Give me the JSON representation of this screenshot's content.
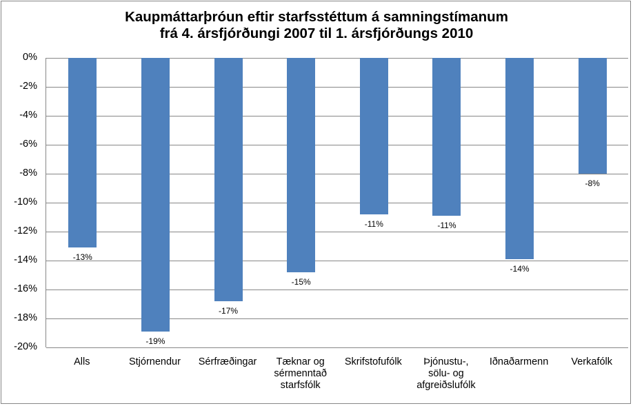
{
  "chart_data": {
    "type": "bar",
    "title": "Kaupmáttarþróun eftir starfsstéttum á samningstímanum frá 4. ársfjórðungi 2007 til 1. ársfjórðungs 2010",
    "title_lines": [
      "Kaupmáttarþróun eftir starfsstéttum á samningstímanum",
      "frá 4. ársfjórðungi 2007 til 1. ársfjórðungs 2010"
    ],
    "categories": [
      "Alls",
      "Stjórnendur",
      "Sérfræðingar",
      "Tæknar og sérmenntað starfsfólk",
      "Skrifstofufólk",
      "Þjónustu-, sölu- og afgreiðslufólk",
      "Iðnaðarmenn",
      "Verkafólk"
    ],
    "category_lines": [
      [
        "Alls"
      ],
      [
        "Stjórnendur"
      ],
      [
        "Sérfræðingar"
      ],
      [
        "Tæknar og",
        "sérmenntað",
        "starfsfólk"
      ],
      [
        "Skrifstofufólk"
      ],
      [
        "Þjónustu-,",
        "sölu- og",
        "afgreiðslufólk"
      ],
      [
        "Iðnaðarmenn"
      ],
      [
        "Verkafólk"
      ]
    ],
    "values": [
      -13.1,
      -18.9,
      -16.8,
      -14.8,
      -10.8,
      -10.9,
      -13.9,
      -8.0
    ],
    "data_labels": [
      "-13%",
      "-19%",
      "-17%",
      "-15%",
      "-11%",
      "-11%",
      "-14%",
      "-8%"
    ],
    "xlabel": "",
    "ylabel": "",
    "ylim": [
      -20,
      0
    ],
    "yticks": [
      "0%",
      "-2%",
      "-4%",
      "-6%",
      "-8%",
      "-10%",
      "-12%",
      "-14%",
      "-16%",
      "-18%",
      "-20%"
    ],
    "grid": true,
    "legend": null,
    "bar_color": "#4f81bd"
  }
}
